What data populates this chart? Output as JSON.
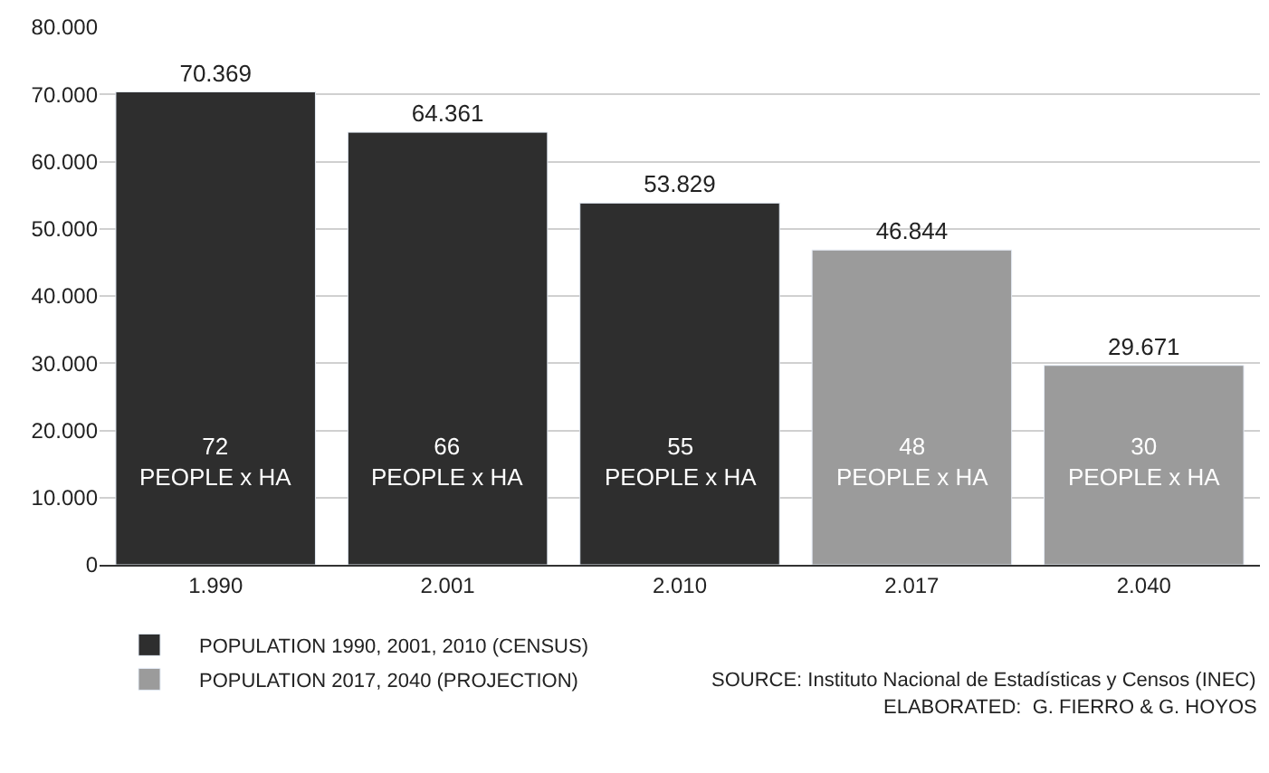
{
  "chart_data": {
    "type": "bar",
    "categories": [
      "1.990",
      "2.001",
      "2.010",
      "2.017",
      "2.040"
    ],
    "series": [
      {
        "name": "POPULATION 1990, 2001, 2010 (CENSUS)",
        "color": "#2e2e2e",
        "values": [
          70369,
          64361,
          53829,
          null,
          null
        ],
        "value_labels": [
          "70.369",
          "64.361",
          "53.829",
          null,
          null
        ]
      },
      {
        "name": "POPULATION 2017, 2040 (PROJECTION)",
        "color": "#9b9b9b",
        "values": [
          null,
          null,
          null,
          46844,
          29671
        ],
        "value_labels": [
          null,
          null,
          null,
          "46.844",
          "29.671"
        ]
      }
    ],
    "ylim": [
      0,
      80000
    ],
    "yticks": [
      {
        "value": 0,
        "label": "0"
      },
      {
        "value": 10000,
        "label": "10.000"
      },
      {
        "value": 20000,
        "label": "20.000"
      },
      {
        "value": 30000,
        "label": "30.000"
      },
      {
        "value": 40000,
        "label": "40.000"
      },
      {
        "value": 50000,
        "label": "50.000"
      },
      {
        "value": 60000,
        "label": "60.000"
      },
      {
        "value": 70000,
        "label": "70.000"
      },
      {
        "value": 80000,
        "label": "80.000"
      }
    ],
    "grid": "y",
    "legend": "bottom left",
    "annotations": [
      "72\nPEOPLE x HA",
      "66\nPEOPLE x HA",
      "55\nPEOPLE x HA",
      "48\nPEOPLE x HA",
      "30\nPEOPLE x HA",
      "SOURCE: Instituto Nacional de Estadísticas y Censos (INEC)",
      "ELABORATED:  G. FIERRO & G. HOYOS"
    ]
  }
}
